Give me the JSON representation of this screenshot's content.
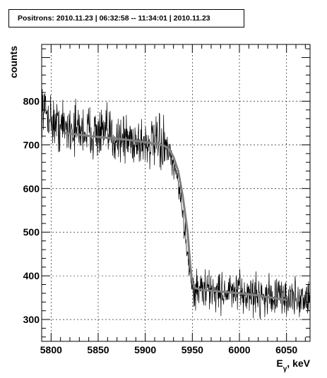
{
  "title": "Positrons: 2010.11.23 | 06:32:58 -- 11:34:01 | 2010.11.23",
  "chart_data": {
    "type": "line",
    "title": "Positrons: 2010.11.23 | 06:32:58 -- 11:34:01 | 2010.11.23",
    "xlabel": "Eγ, keV",
    "xlabel_main": "E",
    "xlabel_sub": "γ",
    "xlabel_unit": ", keV",
    "ylabel": "counts",
    "xlim": [
      5790,
      6075
    ],
    "ylim": [
      250,
      930
    ],
    "x_ticks": [
      5800,
      5850,
      5900,
      5950,
      6000,
      6050
    ],
    "y_ticks": [
      300,
      400,
      500,
      600,
      700,
      800
    ],
    "x_tick_labels": [
      "5800",
      "5850",
      "5900",
      "5950",
      "6000",
      "6050"
    ],
    "y_tick_labels": [
      "300",
      "400",
      "500",
      "600",
      "700",
      "800"
    ],
    "series": [
      {
        "style": "histogram",
        "color": "#000000",
        "x_start": 5790,
        "x_end": 6075,
        "bin_width": 0.35,
        "segments": [
          {
            "x": [
              5790,
              5805
            ],
            "y": [
              790,
              745
            ],
            "noise": 40
          },
          {
            "x": [
              5805,
              5900
            ],
            "y": [
              745,
              705
            ],
            "noise": 45
          },
          {
            "x": [
              5900,
              5922
            ],
            "y": [
              705,
              695
            ],
            "noise": 45
          },
          {
            "x": [
              5922,
              5935
            ],
            "y": [
              695,
              620
            ],
            "noise": 25
          },
          {
            "x": [
              5935,
              5950
            ],
            "y": [
              620,
              370
            ],
            "noise": 25
          },
          {
            "x": [
              5950,
              6075
            ],
            "y": [
              370,
              345
            ],
            "noise": 35
          }
        ]
      },
      {
        "style": "fit",
        "color": "#808080",
        "points": [
          [
            5815,
            727
          ],
          [
            5850,
            718
          ],
          [
            5880,
            712
          ],
          [
            5910,
            703
          ],
          [
            5920,
            698
          ],
          [
            5925,
            692
          ],
          [
            5930,
            672
          ],
          [
            5935,
            640
          ],
          [
            5940,
            580
          ],
          [
            5945,
            500
          ],
          [
            5948,
            420
          ],
          [
            5950,
            385
          ],
          [
            5953,
            372
          ],
          [
            5960,
            368
          ],
          [
            5980,
            364
          ],
          [
            6000,
            360
          ],
          [
            6020,
            355
          ],
          [
            6040,
            348
          ],
          [
            6050,
            345
          ]
        ]
      }
    ],
    "grid": true
  }
}
